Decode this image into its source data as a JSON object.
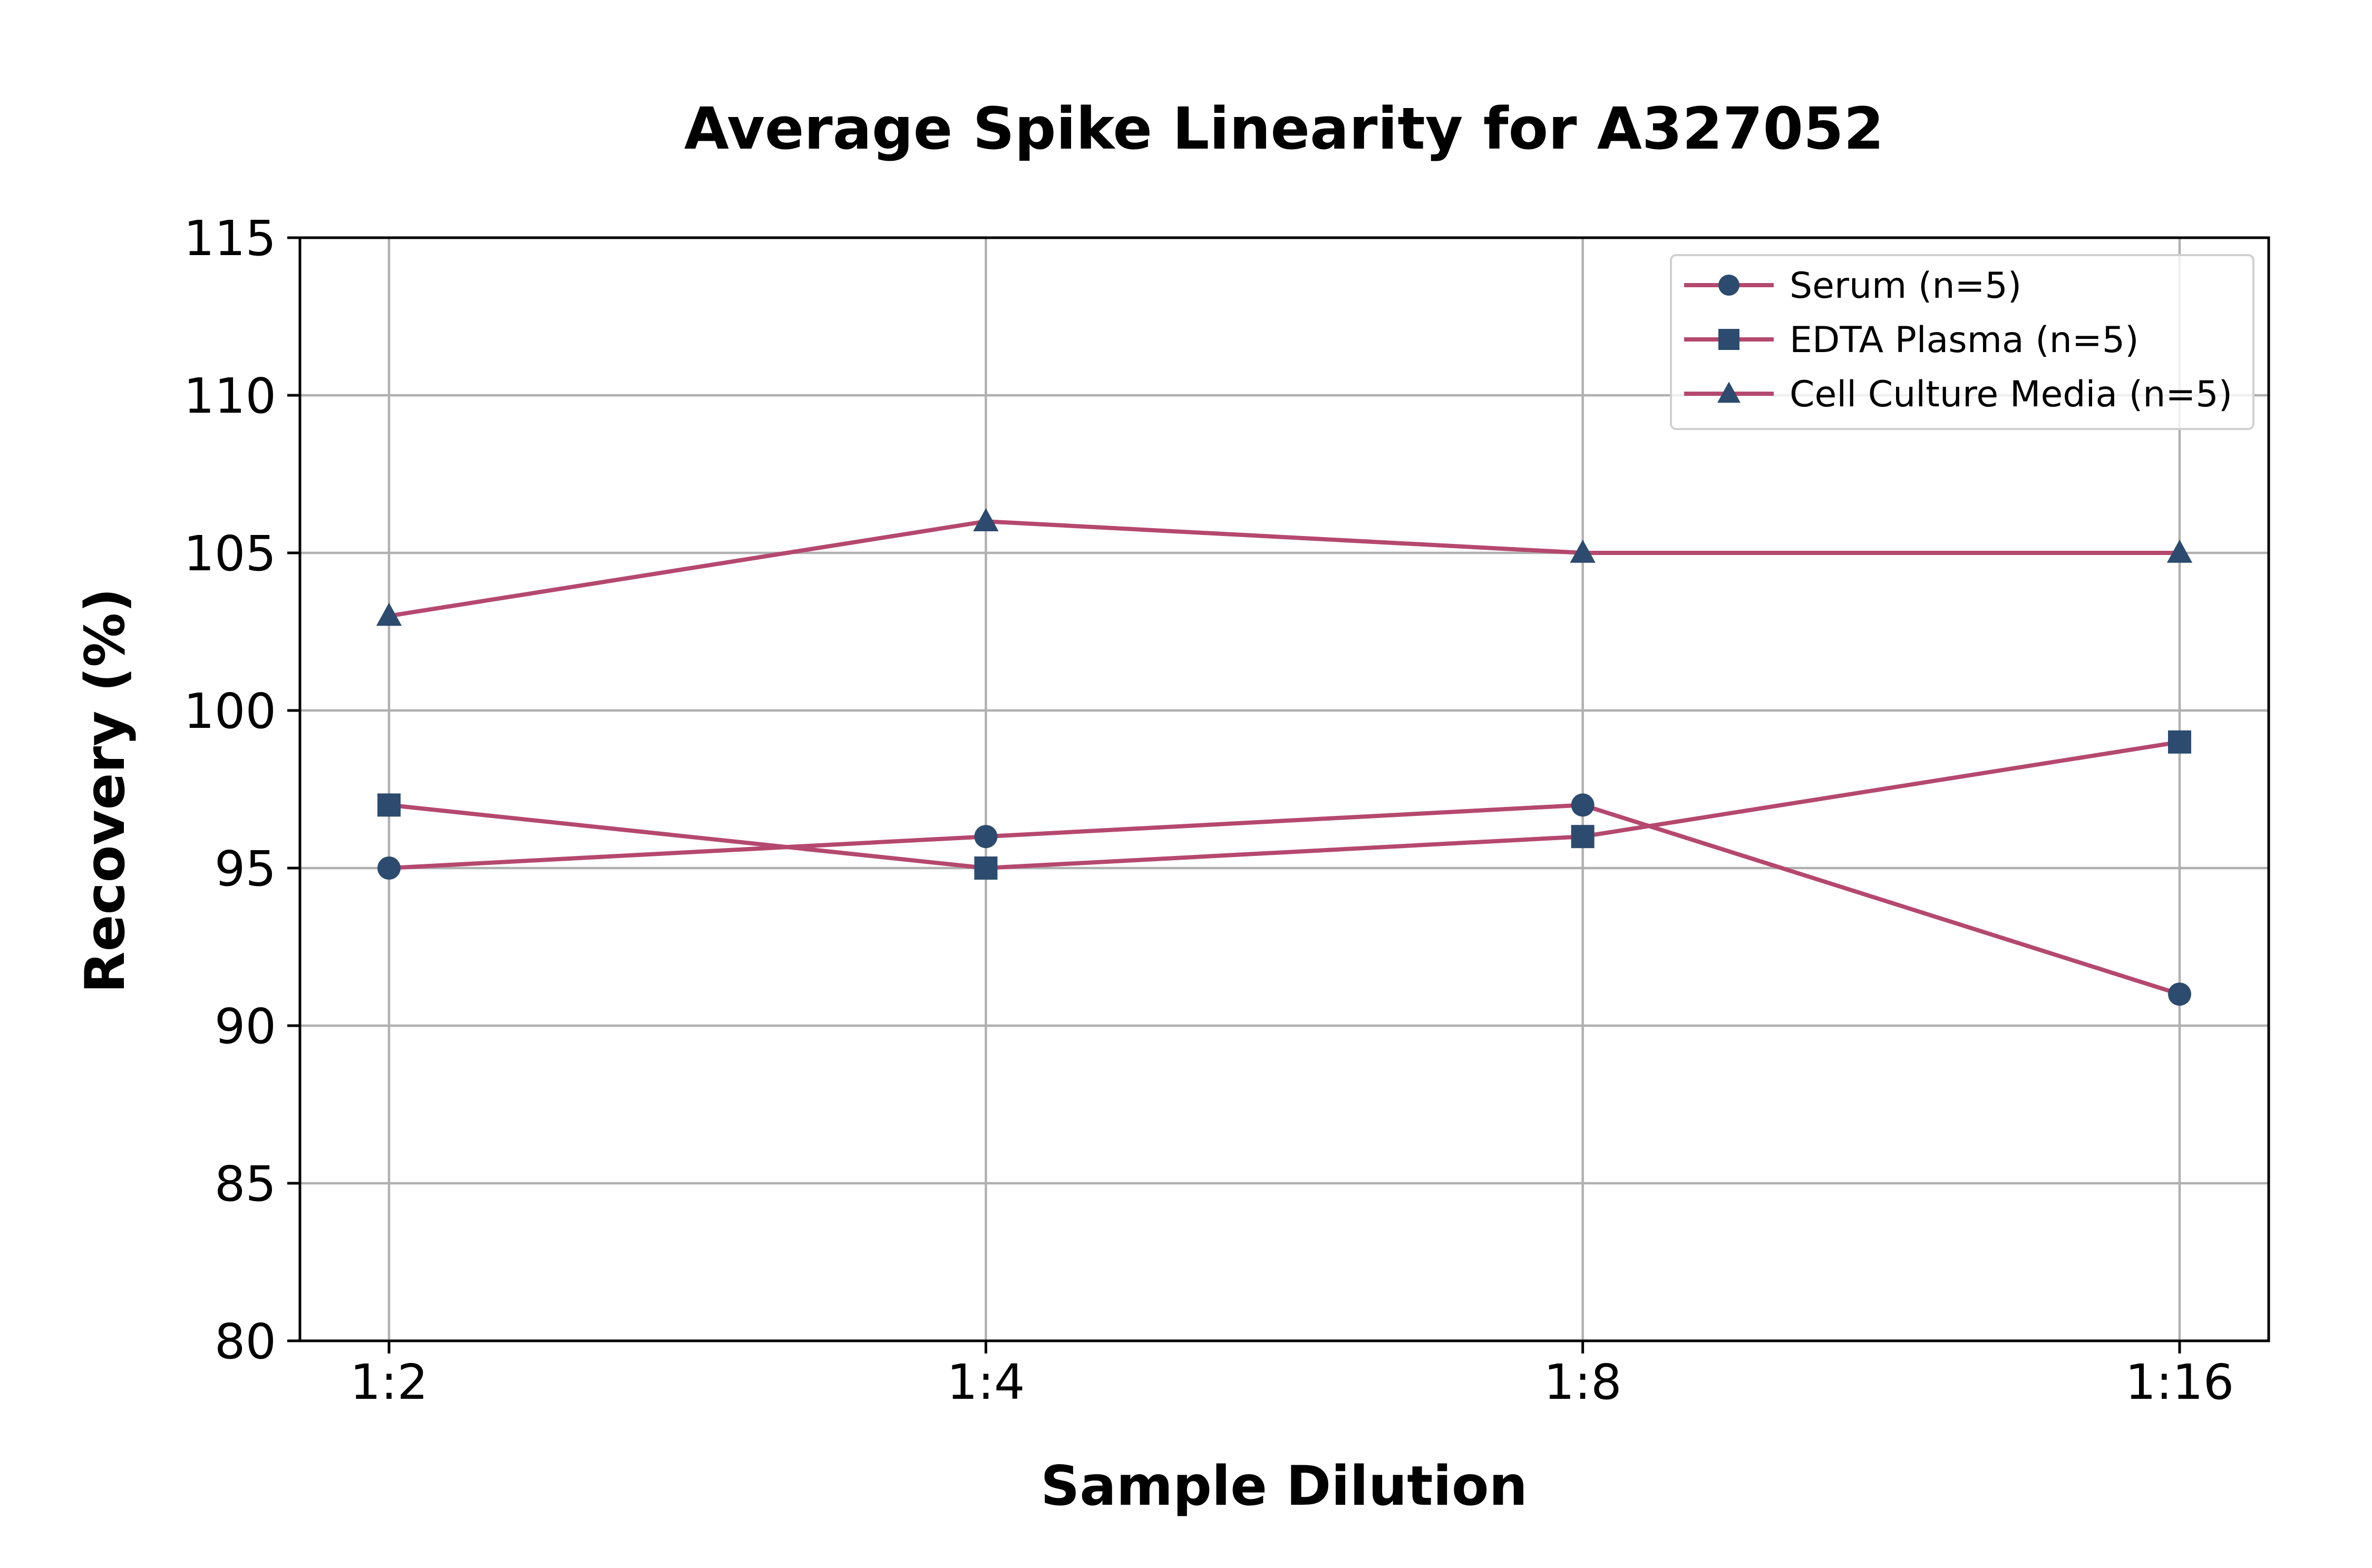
{
  "chart_data": {
    "type": "line",
    "title": "Average Spike Linearity for A327052",
    "xlabel": "Sample Dilution",
    "ylabel": "Recovery (%)",
    "categories": [
      "1:2",
      "1:4",
      "1:8",
      "1:16"
    ],
    "ylim": [
      80,
      115
    ],
    "yticks": [
      80,
      85,
      90,
      95,
      100,
      105,
      110,
      115
    ],
    "grid": true,
    "legend_position": "top-right",
    "line_color": "#b5486e",
    "marker_color": "#2c4b6e",
    "series": [
      {
        "name": "Serum (n=5)",
        "marker": "circle",
        "values": [
          95,
          96,
          97,
          91
        ]
      },
      {
        "name": "EDTA Plasma (n=5)",
        "marker": "square",
        "values": [
          97,
          95,
          96,
          99
        ]
      },
      {
        "name": "Cell Culture Media (n=5)",
        "marker": "triangle",
        "values": [
          103,
          106,
          105,
          105
        ]
      }
    ]
  }
}
